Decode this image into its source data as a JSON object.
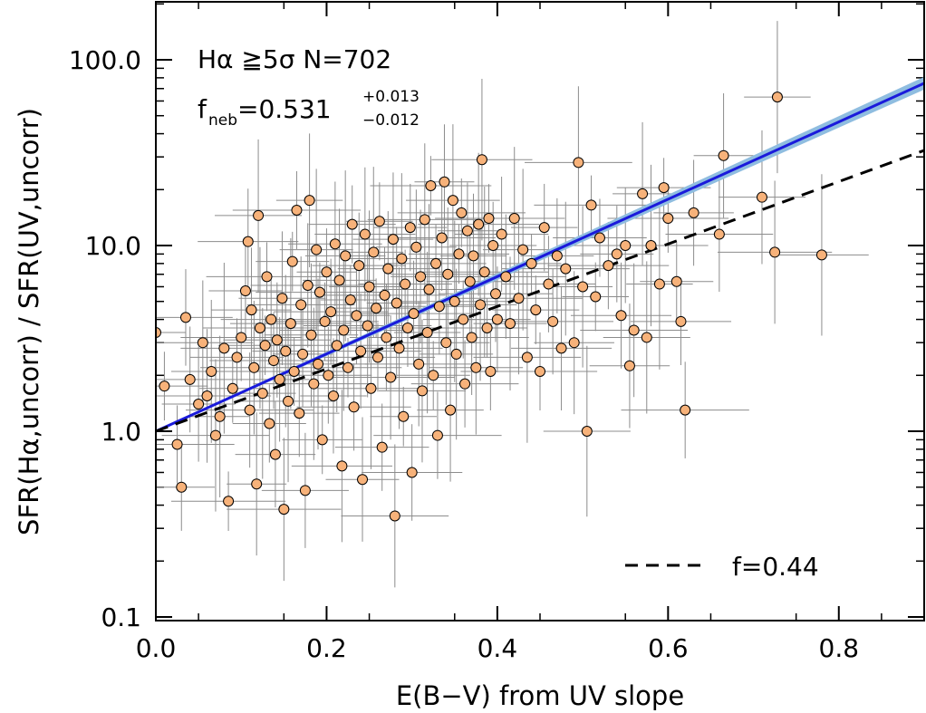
{
  "chart_data": {
    "type": "scatter",
    "title": "",
    "xlabel": "E(B−V) from UV slope",
    "ylabel": "SFR(Hα,uncorr) / SFR(UV,uncorr)",
    "xlim": [
      0.0,
      0.9
    ],
    "ylim": [
      0.1,
      200.0
    ],
    "yscale": "log",
    "x_ticks": [
      0.0,
      0.2,
      0.4,
      0.6,
      0.8
    ],
    "x_tick_labels": [
      "0.0",
      "0.2",
      "0.4",
      "0.6",
      "0.8"
    ],
    "y_ticks": [
      0.1,
      1.0,
      10.0,
      100.0
    ],
    "y_tick_labels": [
      "0.1",
      "1.0",
      "10.0",
      "100.0"
    ],
    "annotations": {
      "line1": "Hα ≧5σ N=702",
      "fneb_base": "f",
      "fneb_sub": "neb",
      "fneb_value": "=0.531",
      "fneb_plus": "+0.013",
      "fneb_minus": "−0.012"
    },
    "legend": {
      "position": "bottom-right",
      "entries": [
        {
          "label": "f=0.44",
          "style": "dashed",
          "color": "#000000"
        }
      ]
    },
    "fit_lines": [
      {
        "name": "best fit f_neb=0.531",
        "color": "#1a1adb",
        "band_color": "#8fbde0",
        "slope_log10_per_ebv": 2.082,
        "intercept": 1.0
      },
      {
        "name": "f=0.44",
        "color": "#000000",
        "style": "dashed",
        "slope_log10_per_ebv": 1.68,
        "intercept": 1.0
      }
    ],
    "series": [
      {
        "name": "galaxies",
        "marker_color": "#f7b27a",
        "errorbar_color": "#8c8c8c",
        "points": [
          {
            "x": 0.0,
            "y": 3.4
          },
          {
            "x": 0.01,
            "y": 1.75
          },
          {
            "x": 0.025,
            "y": 0.85
          },
          {
            "x": 0.03,
            "y": 0.5
          },
          {
            "x": 0.035,
            "y": 4.1
          },
          {
            "x": 0.04,
            "y": 1.9
          },
          {
            "x": 0.05,
            "y": 1.4
          },
          {
            "x": 0.055,
            "y": 3.0
          },
          {
            "x": 0.06,
            "y": 1.55
          },
          {
            "x": 0.065,
            "y": 2.1
          },
          {
            "x": 0.07,
            "y": 0.95
          },
          {
            "x": 0.075,
            "y": 1.2
          },
          {
            "x": 0.08,
            "y": 2.8
          },
          {
            "x": 0.085,
            "y": 0.42
          },
          {
            "x": 0.09,
            "y": 1.7
          },
          {
            "x": 0.095,
            "y": 2.5
          },
          {
            "x": 0.1,
            "y": 3.2
          },
          {
            "x": 0.105,
            "y": 5.7
          },
          {
            "x": 0.108,
            "y": 10.5
          },
          {
            "x": 0.11,
            "y": 1.3
          },
          {
            "x": 0.112,
            "y": 4.5
          },
          {
            "x": 0.115,
            "y": 2.2
          },
          {
            "x": 0.118,
            "y": 0.52
          },
          {
            "x": 0.12,
            "y": 14.5
          },
          {
            "x": 0.122,
            "y": 3.6
          },
          {
            "x": 0.125,
            "y": 1.6
          },
          {
            "x": 0.128,
            "y": 2.9
          },
          {
            "x": 0.13,
            "y": 6.8
          },
          {
            "x": 0.133,
            "y": 1.1
          },
          {
            "x": 0.135,
            "y": 4.0
          },
          {
            "x": 0.138,
            "y": 2.4
          },
          {
            "x": 0.14,
            "y": 0.75
          },
          {
            "x": 0.142,
            "y": 3.1
          },
          {
            "x": 0.145,
            "y": 1.9
          },
          {
            "x": 0.148,
            "y": 5.2
          },
          {
            "x": 0.15,
            "y": 0.38
          },
          {
            "x": 0.152,
            "y": 2.7
          },
          {
            "x": 0.155,
            "y": 1.45
          },
          {
            "x": 0.158,
            "y": 3.8
          },
          {
            "x": 0.16,
            "y": 8.2
          },
          {
            "x": 0.162,
            "y": 2.1
          },
          {
            "x": 0.165,
            "y": 15.5
          },
          {
            "x": 0.168,
            "y": 1.25
          },
          {
            "x": 0.17,
            "y": 4.8
          },
          {
            "x": 0.172,
            "y": 2.6
          },
          {
            "x": 0.175,
            "y": 0.48
          },
          {
            "x": 0.178,
            "y": 6.1
          },
          {
            "x": 0.18,
            "y": 17.5
          },
          {
            "x": 0.182,
            "y": 3.3
          },
          {
            "x": 0.185,
            "y": 1.8
          },
          {
            "x": 0.188,
            "y": 9.5
          },
          {
            "x": 0.19,
            "y": 2.3
          },
          {
            "x": 0.192,
            "y": 5.6
          },
          {
            "x": 0.195,
            "y": 0.9
          },
          {
            "x": 0.198,
            "y": 3.9
          },
          {
            "x": 0.2,
            "y": 7.2
          },
          {
            "x": 0.202,
            "y": 2.0
          },
          {
            "x": 0.205,
            "y": 4.4
          },
          {
            "x": 0.208,
            "y": 1.55
          },
          {
            "x": 0.21,
            "y": 10.2
          },
          {
            "x": 0.212,
            "y": 2.9
          },
          {
            "x": 0.215,
            "y": 6.5
          },
          {
            "x": 0.218,
            "y": 0.65
          },
          {
            "x": 0.22,
            "y": 3.5
          },
          {
            "x": 0.222,
            "y": 8.8
          },
          {
            "x": 0.225,
            "y": 2.2
          },
          {
            "x": 0.228,
            "y": 5.1
          },
          {
            "x": 0.23,
            "y": 13.0
          },
          {
            "x": 0.232,
            "y": 1.35
          },
          {
            "x": 0.235,
            "y": 4.2
          },
          {
            "x": 0.238,
            "y": 7.8
          },
          {
            "x": 0.24,
            "y": 2.7
          },
          {
            "x": 0.242,
            "y": 0.55
          },
          {
            "x": 0.245,
            "y": 11.5
          },
          {
            "x": 0.248,
            "y": 3.7
          },
          {
            "x": 0.25,
            "y": 6.0
          },
          {
            "x": 0.252,
            "y": 1.7
          },
          {
            "x": 0.255,
            "y": 9.2
          },
          {
            "x": 0.258,
            "y": 4.6
          },
          {
            "x": 0.26,
            "y": 2.5
          },
          {
            "x": 0.262,
            "y": 13.5
          },
          {
            "x": 0.265,
            "y": 0.82
          },
          {
            "x": 0.268,
            "y": 5.4
          },
          {
            "x": 0.27,
            "y": 3.2
          },
          {
            "x": 0.272,
            "y": 7.5
          },
          {
            "x": 0.275,
            "y": 1.95
          },
          {
            "x": 0.278,
            "y": 10.8
          },
          {
            "x": 0.28,
            "y": 0.35
          },
          {
            "x": 0.282,
            "y": 4.9
          },
          {
            "x": 0.285,
            "y": 2.8
          },
          {
            "x": 0.288,
            "y": 8.5
          },
          {
            "x": 0.29,
            "y": 1.2
          },
          {
            "x": 0.292,
            "y": 6.2
          },
          {
            "x": 0.295,
            "y": 3.6
          },
          {
            "x": 0.298,
            "y": 12.5
          },
          {
            "x": 0.3,
            "y": 0.6
          },
          {
            "x": 0.302,
            "y": 4.3
          },
          {
            "x": 0.305,
            "y": 9.8
          },
          {
            "x": 0.308,
            "y": 2.3
          },
          {
            "x": 0.31,
            "y": 6.8
          },
          {
            "x": 0.312,
            "y": 1.65
          },
          {
            "x": 0.315,
            "y": 13.8
          },
          {
            "x": 0.318,
            "y": 3.4
          },
          {
            "x": 0.32,
            "y": 5.8
          },
          {
            "x": 0.322,
            "y": 21.0
          },
          {
            "x": 0.325,
            "y": 2.0
          },
          {
            "x": 0.328,
            "y": 8.0
          },
          {
            "x": 0.33,
            "y": 0.95
          },
          {
            "x": 0.332,
            "y": 4.7
          },
          {
            "x": 0.335,
            "y": 11.0
          },
          {
            "x": 0.338,
            "y": 22.0
          },
          {
            "x": 0.34,
            "y": 3.0
          },
          {
            "x": 0.342,
            "y": 7.0
          },
          {
            "x": 0.345,
            "y": 1.3
          },
          {
            "x": 0.348,
            "y": 17.5
          },
          {
            "x": 0.35,
            "y": 5.0
          },
          {
            "x": 0.352,
            "y": 2.6
          },
          {
            "x": 0.355,
            "y": 9.0
          },
          {
            "x": 0.358,
            "y": 15.0
          },
          {
            "x": 0.36,
            "y": 4.0
          },
          {
            "x": 0.362,
            "y": 1.8
          },
          {
            "x": 0.365,
            "y": 12.0
          },
          {
            "x": 0.368,
            "y": 6.4
          },
          {
            "x": 0.37,
            "y": 3.2
          },
          {
            "x": 0.372,
            "y": 8.8
          },
          {
            "x": 0.375,
            "y": 2.2
          },
          {
            "x": 0.378,
            "y": 13.0
          },
          {
            "x": 0.38,
            "y": 4.8
          },
          {
            "x": 0.382,
            "y": 29.0
          },
          {
            "x": 0.385,
            "y": 7.2
          },
          {
            "x": 0.388,
            "y": 3.6
          },
          {
            "x": 0.39,
            "y": 14.0
          },
          {
            "x": 0.392,
            "y": 2.1
          },
          {
            "x": 0.395,
            "y": 10.0
          },
          {
            "x": 0.398,
            "y": 5.5
          },
          {
            "x": 0.4,
            "y": 4.0
          },
          {
            "x": 0.405,
            "y": 11.5
          },
          {
            "x": 0.41,
            "y": 6.8
          },
          {
            "x": 0.415,
            "y": 3.8
          },
          {
            "x": 0.42,
            "y": 14.0
          },
          {
            "x": 0.425,
            "y": 5.2
          },
          {
            "x": 0.43,
            "y": 9.5
          },
          {
            "x": 0.435,
            "y": 2.5
          },
          {
            "x": 0.44,
            "y": 8.0
          },
          {
            "x": 0.445,
            "y": 4.5
          },
          {
            "x": 0.45,
            "y": 2.1
          },
          {
            "x": 0.455,
            "y": 12.5
          },
          {
            "x": 0.46,
            "y": 6.2
          },
          {
            "x": 0.465,
            "y": 3.9
          },
          {
            "x": 0.47,
            "y": 8.8
          },
          {
            "x": 0.475,
            "y": 2.8
          },
          {
            "x": 0.48,
            "y": 7.5
          },
          {
            "x": 0.49,
            "y": 3.0
          },
          {
            "x": 0.495,
            "y": 28.0
          },
          {
            "x": 0.5,
            "y": 6.0
          },
          {
            "x": 0.505,
            "y": 1.0
          },
          {
            "x": 0.51,
            "y": 16.5
          },
          {
            "x": 0.515,
            "y": 5.3
          },
          {
            "x": 0.52,
            "y": 11.0
          },
          {
            "x": 0.53,
            "y": 7.8
          },
          {
            "x": 0.54,
            "y": 9.0
          },
          {
            "x": 0.545,
            "y": 4.2
          },
          {
            "x": 0.55,
            "y": 10.0
          },
          {
            "x": 0.555,
            "y": 2.25
          },
          {
            "x": 0.56,
            "y": 3.5
          },
          {
            "x": 0.57,
            "y": 19.0
          },
          {
            "x": 0.575,
            "y": 3.2
          },
          {
            "x": 0.58,
            "y": 10.0
          },
          {
            "x": 0.59,
            "y": 6.2
          },
          {
            "x": 0.595,
            "y": 20.5
          },
          {
            "x": 0.6,
            "y": 14.0
          },
          {
            "x": 0.61,
            "y": 6.4
          },
          {
            "x": 0.615,
            "y": 3.9
          },
          {
            "x": 0.62,
            "y": 1.3
          },
          {
            "x": 0.63,
            "y": 15.0
          },
          {
            "x": 0.66,
            "y": 11.5
          },
          {
            "x": 0.665,
            "y": 30.5
          },
          {
            "x": 0.71,
            "y": 18.2
          },
          {
            "x": 0.725,
            "y": 9.2
          },
          {
            "x": 0.728,
            "y": 63.0
          },
          {
            "x": 0.78,
            "y": 8.9
          }
        ]
      }
    ]
  }
}
